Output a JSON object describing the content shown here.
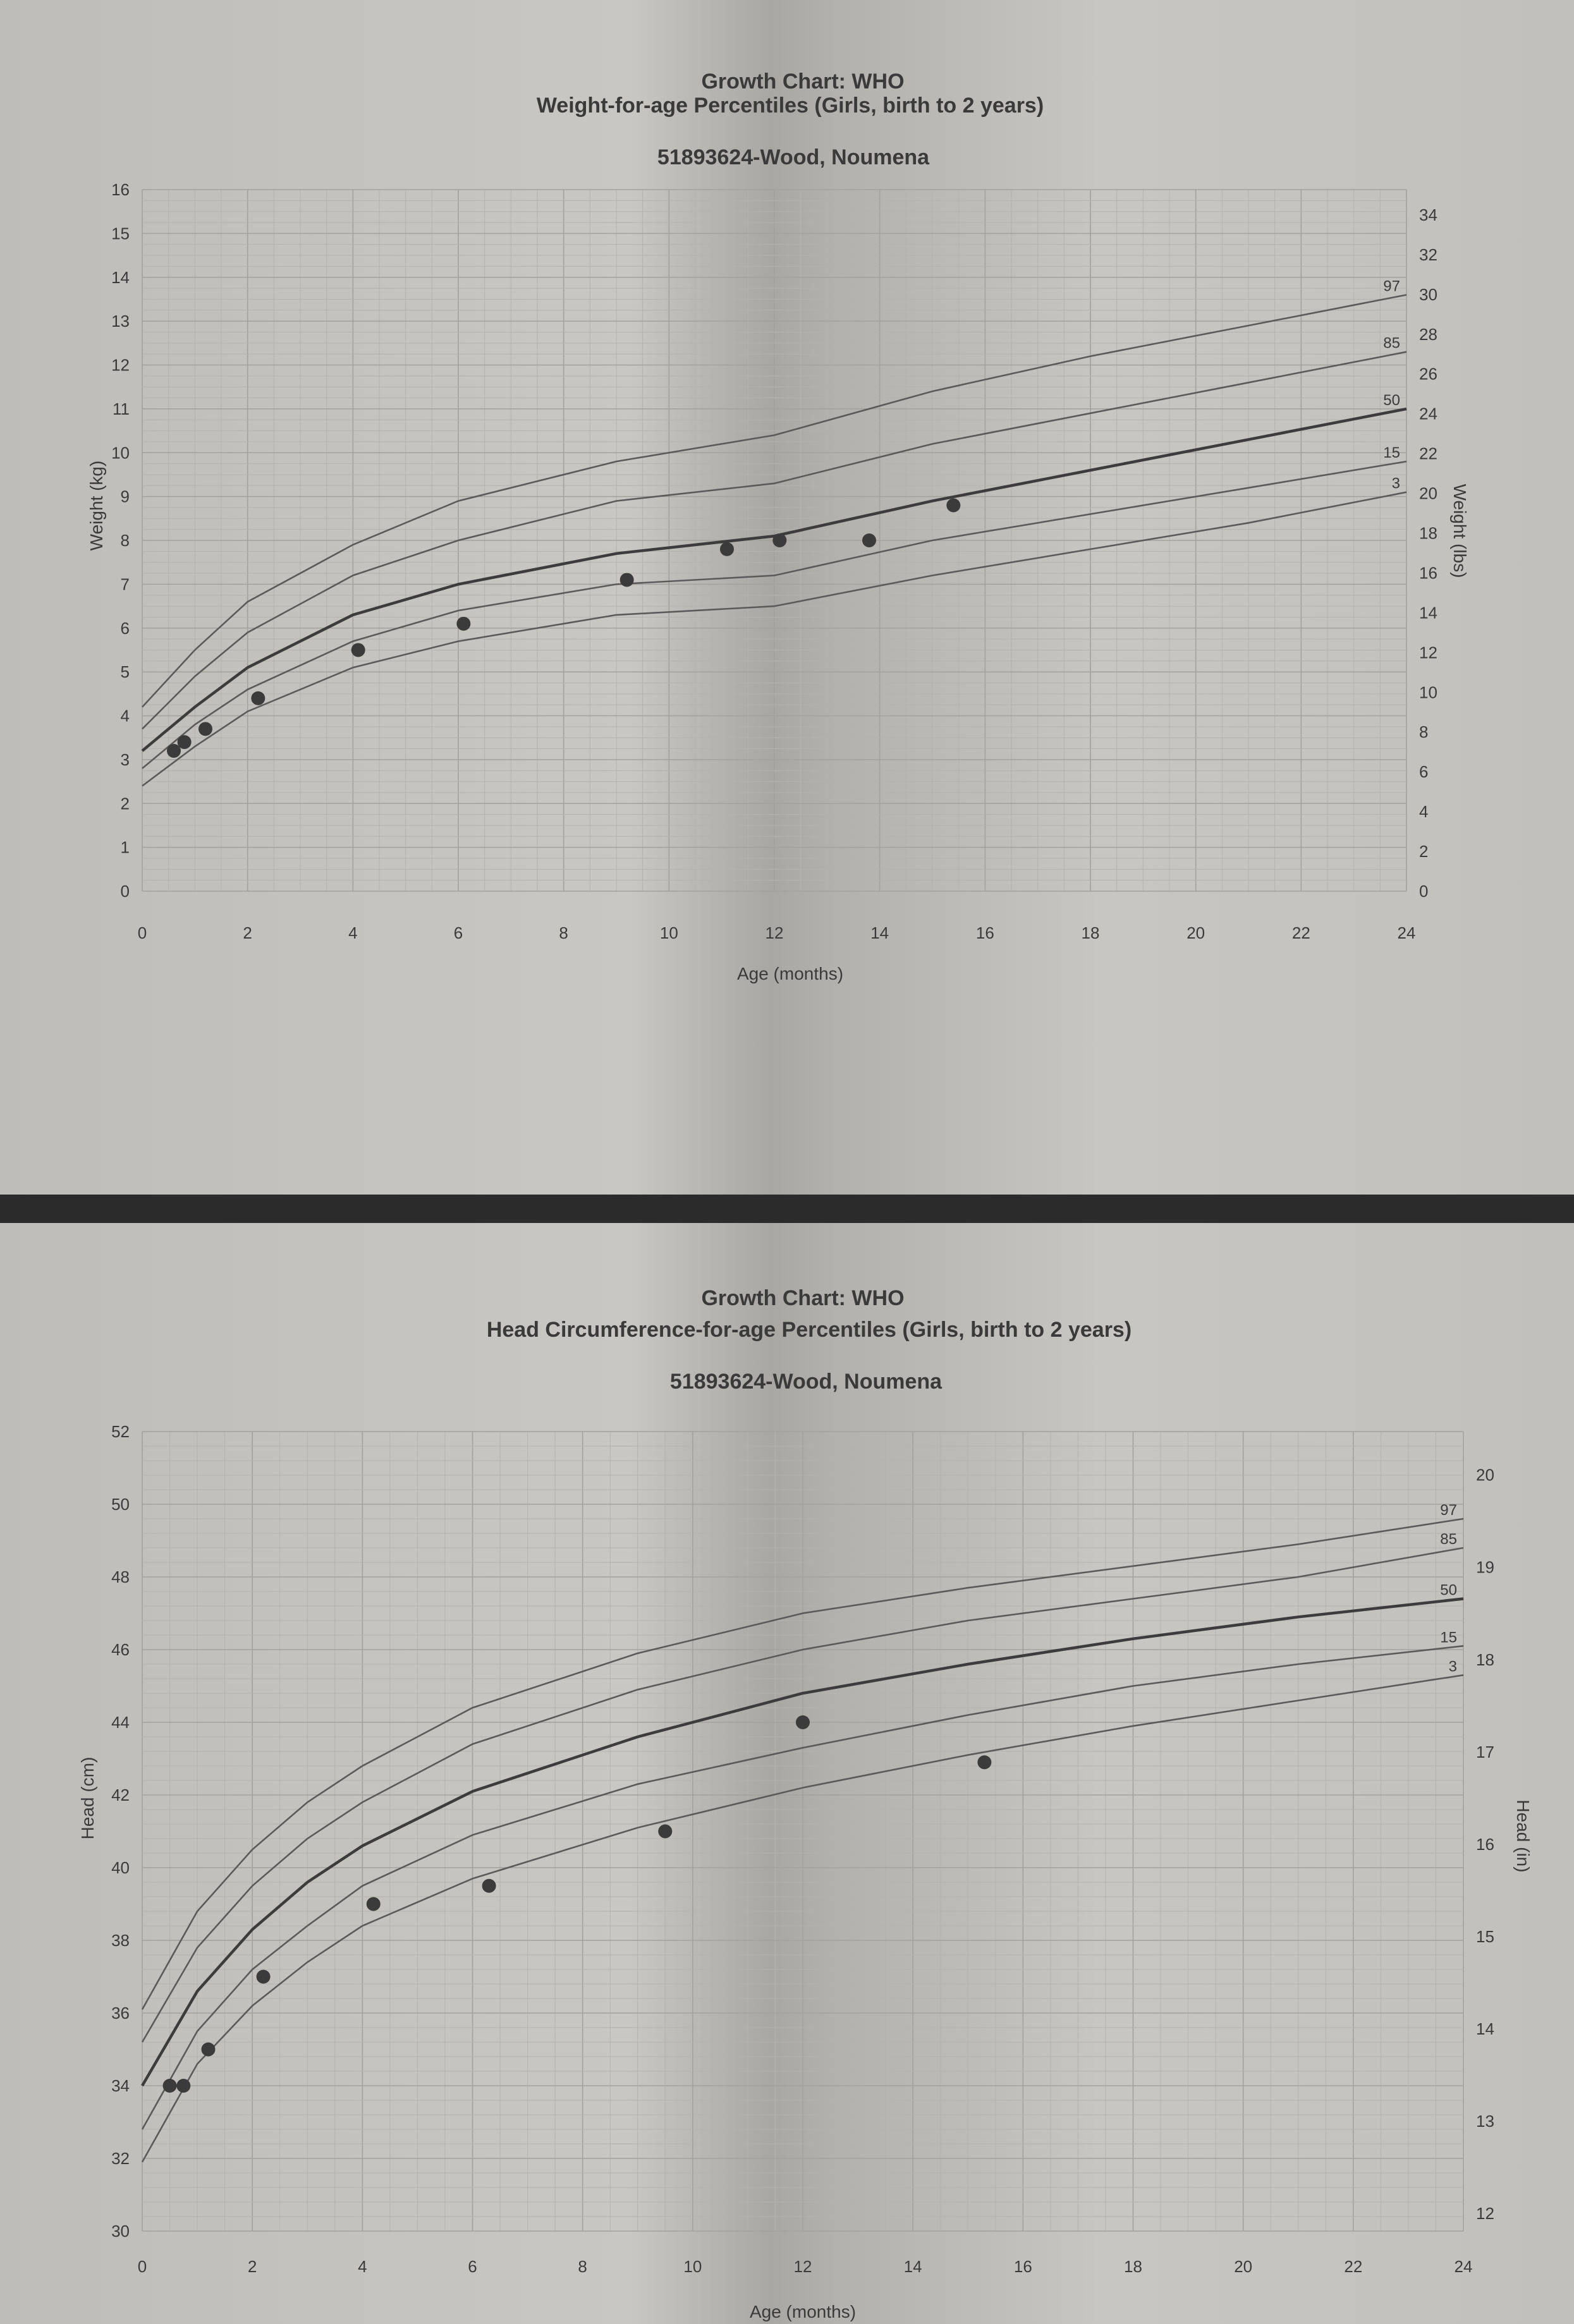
{
  "chart_data": [
    {
      "type": "line",
      "title": "Growth Chart: WHO",
      "subtitle": "Weight-for-age Percentiles (Girls, birth to 2 years)",
      "patient": "51893624-Wood, Noumena",
      "xlabel": "Age (months)",
      "ylabel": "Weight (kg)",
      "ylabel_right": "Weight (lbs)",
      "xlim": [
        0,
        24
      ],
      "ylim": [
        0,
        16
      ],
      "ylim_right": [
        0,
        35.27
      ],
      "x_ticks": [
        "0",
        "2",
        "4",
        "6",
        "8",
        "10",
        "12",
        "14",
        "16",
        "18",
        "20",
        "22",
        "24"
      ],
      "y_ticks": [
        "0",
        "1",
        "2",
        "3",
        "4",
        "5",
        "6",
        "7",
        "8",
        "9",
        "10",
        "11",
        "12",
        "13",
        "14",
        "15",
        "16"
      ],
      "y_ticks_right": [
        "0",
        "2",
        "4",
        "6",
        "8",
        "10",
        "12",
        "14",
        "16",
        "18",
        "20",
        "22",
        "24",
        "26",
        "28",
        "30",
        "32",
        "34"
      ],
      "grid": true,
      "series": [
        {
          "name": "97",
          "x": [
            0,
            1,
            2,
            4,
            6,
            9,
            12,
            15,
            18,
            21,
            24
          ],
          "y": [
            4.2,
            5.5,
            6.6,
            7.9,
            8.9,
            9.8,
            10.4,
            11.4,
            12.2,
            12.9,
            13.6
          ]
        },
        {
          "name": "85",
          "x": [
            0,
            1,
            2,
            4,
            6,
            9,
            12,
            15,
            18,
            21,
            24
          ],
          "y": [
            3.7,
            4.9,
            5.9,
            7.2,
            8.0,
            8.9,
            9.3,
            10.2,
            10.9,
            11.6,
            12.3
          ]
        },
        {
          "name": "50",
          "x": [
            0,
            1,
            2,
            4,
            6,
            9,
            12,
            15,
            18,
            21,
            24
          ],
          "y": [
            3.2,
            4.2,
            5.1,
            6.3,
            7.0,
            7.7,
            8.1,
            8.9,
            9.6,
            10.3,
            11.0
          ]
        },
        {
          "name": "15",
          "x": [
            0,
            1,
            2,
            4,
            6,
            9,
            12,
            15,
            18,
            21,
            24
          ],
          "y": [
            2.8,
            3.8,
            4.6,
            5.7,
            6.4,
            7.0,
            7.2,
            8.0,
            8.6,
            9.2,
            9.8
          ]
        },
        {
          "name": "3",
          "x": [
            0,
            1,
            2,
            4,
            6,
            9,
            12,
            15,
            18,
            21,
            24
          ],
          "y": [
            2.4,
            3.3,
            4.1,
            5.1,
            5.7,
            6.3,
            6.5,
            7.2,
            7.8,
            8.4,
            9.1
          ]
        }
      ],
      "points": {
        "name": "patient",
        "x": [
          0.6,
          0.8,
          1.2,
          2.2,
          4.1,
          6.1,
          9.2,
          11.1,
          12.1,
          13.8,
          15.4
        ],
        "y": [
          3.2,
          3.4,
          3.7,
          4.4,
          5.5,
          6.1,
          7.1,
          7.8,
          8.0,
          8.0,
          8.8
        ]
      }
    },
    {
      "type": "line",
      "title": "Growth Chart: WHO",
      "subtitle": "Head Circumference-for-age Percentiles (Girls, birth to 2 years)",
      "patient": "51893624-Wood, Noumena",
      "xlabel": "Age (months)",
      "ylabel": "Head (cm)",
      "ylabel_right": "Head (in)",
      "xlim": [
        0,
        24
      ],
      "ylim": [
        30,
        52
      ],
      "ylim_right": [
        11.81,
        20.47
      ],
      "x_ticks": [
        "0",
        "2",
        "4",
        "6",
        "8",
        "10",
        "12",
        "14",
        "16",
        "18",
        "20",
        "22",
        "24"
      ],
      "y_ticks": [
        "30",
        "32",
        "34",
        "36",
        "38",
        "40",
        "42",
        "44",
        "46",
        "48",
        "50",
        "52"
      ],
      "y_ticks_right": [
        "12",
        "13",
        "14",
        "15",
        "16",
        "17",
        "18",
        "19",
        "20"
      ],
      "grid": true,
      "series": [
        {
          "name": "97",
          "x": [
            0,
            1,
            2,
            3,
            4,
            6,
            9,
            12,
            15,
            18,
            21,
            24
          ],
          "y": [
            36.1,
            38.8,
            40.5,
            41.8,
            42.8,
            44.4,
            45.9,
            47.0,
            47.7,
            48.3,
            48.9,
            49.6
          ]
        },
        {
          "name": "85",
          "x": [
            0,
            1,
            2,
            3,
            4,
            6,
            9,
            12,
            15,
            18,
            21,
            24
          ],
          "y": [
            35.2,
            37.8,
            39.5,
            40.8,
            41.8,
            43.4,
            44.9,
            46.0,
            46.8,
            47.4,
            48.0,
            48.8
          ]
        },
        {
          "name": "50",
          "x": [
            0,
            1,
            2,
            3,
            4,
            6,
            9,
            12,
            15,
            18,
            21,
            24
          ],
          "y": [
            34.0,
            36.6,
            38.3,
            39.6,
            40.6,
            42.1,
            43.6,
            44.8,
            45.6,
            46.3,
            46.9,
            47.4
          ]
        },
        {
          "name": "15",
          "x": [
            0,
            1,
            2,
            3,
            4,
            6,
            9,
            12,
            15,
            18,
            21,
            24
          ],
          "y": [
            32.8,
            35.5,
            37.2,
            38.4,
            39.5,
            40.9,
            42.3,
            43.3,
            44.2,
            45.0,
            45.6,
            46.1
          ]
        },
        {
          "name": "3",
          "x": [
            0,
            1,
            2,
            3,
            4,
            6,
            9,
            12,
            15,
            18,
            21,
            24
          ],
          "y": [
            31.9,
            34.6,
            36.2,
            37.4,
            38.4,
            39.7,
            41.1,
            42.2,
            43.1,
            43.9,
            44.6,
            45.3
          ]
        }
      ],
      "points": {
        "name": "patient",
        "x": [
          0.5,
          0.75,
          1.2,
          2.2,
          4.2,
          6.3,
          9.5,
          12.0,
          15.3
        ],
        "y": [
          34.0,
          34.0,
          35.0,
          37.0,
          39.0,
          39.5,
          41.0,
          44.0,
          42.9
        ]
      }
    }
  ]
}
